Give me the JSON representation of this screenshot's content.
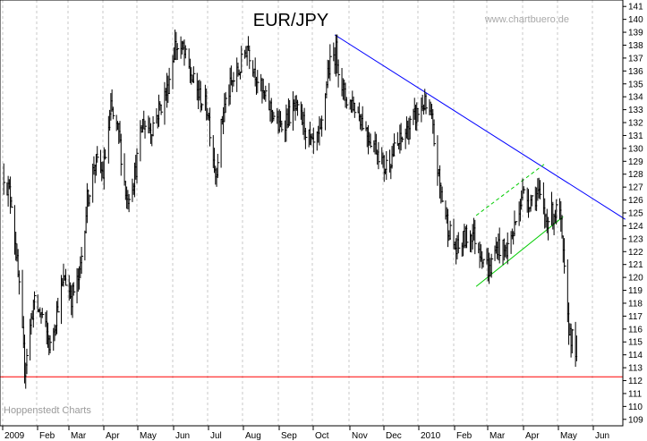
{
  "title": "EUR/JPY",
  "watermark_top": "www.chartbuero.de",
  "watermark_bottom": "Hoppenstedt Charts",
  "colors": {
    "price": "#000000",
    "grid": "#c8c8c8",
    "downtrend": "#0000ff",
    "support": "#ff0000",
    "channel": "#00cc00"
  },
  "chart_data": {
    "type": "ohlc",
    "ylim": [
      108.5,
      141.5
    ],
    "yticks": [
      109,
      110,
      111,
      112,
      113,
      114,
      115,
      116,
      117,
      118,
      119,
      120,
      121,
      122,
      123,
      124,
      125,
      126,
      127,
      128,
      129,
      130,
      131,
      132,
      133,
      134,
      135,
      136,
      137,
      138,
      139,
      140,
      141
    ],
    "xlabels": [
      "2009",
      "Feb",
      "Mar",
      "Apr",
      "May",
      "Jun",
      "Jul",
      "Aug",
      "Sep",
      "Oct",
      "Nov",
      "Dec",
      "2010",
      "Feb",
      "Mar",
      "Apr",
      "May",
      "Jun"
    ],
    "grid": true,
    "price_path": [
      [
        "2009-01-02",
        128.0
      ],
      [
        "2009-01-09",
        126.0
      ],
      [
        "2009-01-16",
        119.0
      ],
      [
        "2009-01-21",
        113.0
      ],
      [
        "2009-01-29",
        118.0
      ],
      [
        "2009-02-06",
        117.0
      ],
      [
        "2009-02-13",
        114.5
      ],
      [
        "2009-02-20",
        118.0
      ],
      [
        "2009-02-26",
        120.0
      ],
      [
        "2009-03-04",
        118.5
      ],
      [
        "2009-03-11",
        120.0
      ],
      [
        "2009-03-18",
        126.0
      ],
      [
        "2009-03-25",
        129.0
      ],
      [
        "2009-04-01",
        128.0
      ],
      [
        "2009-04-08",
        133.0
      ],
      [
        "2009-04-15",
        131.0
      ],
      [
        "2009-04-22",
        126.0
      ],
      [
        "2009-04-29",
        128.0
      ],
      [
        "2009-05-06",
        132.0
      ],
      [
        "2009-05-13",
        131.5
      ],
      [
        "2009-05-20",
        133.0
      ],
      [
        "2009-05-27",
        134.5
      ],
      [
        "2009-06-03",
        138.0
      ],
      [
        "2009-06-10",
        137.5
      ],
      [
        "2009-06-17",
        135.5
      ],
      [
        "2009-06-24",
        134.0
      ],
      [
        "2009-07-01",
        133.0
      ],
      [
        "2009-07-08",
        128.0
      ],
      [
        "2009-07-15",
        133.0
      ],
      [
        "2009-07-22",
        135.0
      ],
      [
        "2009-07-29",
        136.0
      ],
      [
        "2009-08-05",
        138.0
      ],
      [
        "2009-08-12",
        136.0
      ],
      [
        "2009-08-19",
        134.0
      ],
      [
        "2009-08-26",
        133.0
      ],
      [
        "2009-09-02",
        131.5
      ],
      [
        "2009-09-09",
        132.5
      ],
      [
        "2009-09-16",
        133.0
      ],
      [
        "2009-09-23",
        132.0
      ],
      [
        "2009-10-01",
        130.0
      ],
      [
        "2009-10-08",
        131.0
      ],
      [
        "2009-10-14",
        136.0
      ],
      [
        "2009-10-21",
        137.5
      ],
      [
        "2009-10-28",
        134.0
      ],
      [
        "2009-11-04",
        133.5
      ],
      [
        "2009-11-11",
        132.5
      ],
      [
        "2009-11-18",
        131.0
      ],
      [
        "2009-11-26",
        130.0
      ],
      [
        "2009-12-02",
        128.5
      ],
      [
        "2009-12-09",
        129.5
      ],
      [
        "2009-12-16",
        130.5
      ],
      [
        "2009-12-23",
        131.5
      ],
      [
        "2010-01-06",
        133.5
      ],
      [
        "2010-01-13",
        132.0
      ],
      [
        "2010-01-20",
        127.0
      ],
      [
        "2010-01-27",
        124.0
      ],
      [
        "2010-02-03",
        122.0
      ],
      [
        "2010-02-10",
        123.0
      ],
      [
        "2010-02-17",
        123.5
      ],
      [
        "2010-02-24",
        122.0
      ],
      [
        "2010-03-03",
        120.5
      ],
      [
        "2010-03-10",
        122.5
      ],
      [
        "2010-03-17",
        122.0
      ],
      [
        "2010-03-24",
        123.5
      ],
      [
        "2010-03-31",
        126.5
      ],
      [
        "2010-04-07",
        126.0
      ],
      [
        "2010-04-14",
        126.5
      ],
      [
        "2010-04-21",
        124.5
      ],
      [
        "2010-04-28",
        125.0
      ],
      [
        "2010-05-03",
        125.0
      ],
      [
        "2010-05-06",
        121.5
      ],
      [
        "2010-05-10",
        116.5
      ],
      [
        "2010-05-13",
        115.5
      ],
      [
        "2010-05-18",
        114.0
      ]
    ],
    "overlays": [
      {
        "kind": "downtrend",
        "from": [
          "2009-10-20",
          138.8
        ],
        "to": [
          "2010-06-30",
          124.5
        ]
      },
      {
        "kind": "support",
        "from": [
          "2008-12-20",
          112.3
        ],
        "to": [
          "2010-06-30",
          112.3
        ]
      },
      {
        "kind": "channel-lower",
        "from": [
          "2010-02-20",
          119.3
        ],
        "to": [
          "2010-05-06",
          124.7
        ]
      },
      {
        "kind": "channel-upper",
        "from": [
          "2010-02-20",
          124.8
        ],
        "to": [
          "2010-04-20",
          128.8
        ]
      }
    ]
  }
}
